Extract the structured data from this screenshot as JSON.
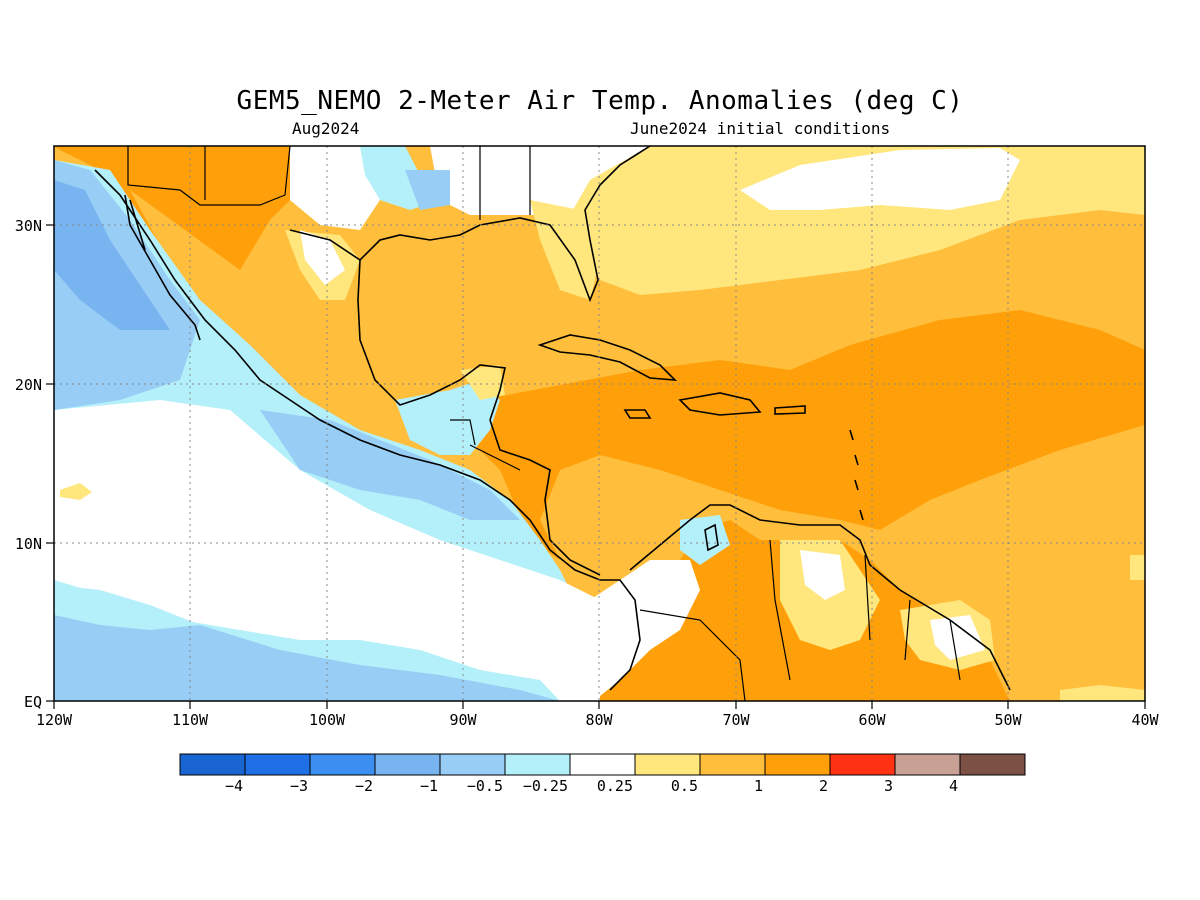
{
  "title": "GEM5_NEMO 2-Meter Air Temp. Anomalies (deg C)",
  "subtitle_left": "Aug2024",
  "subtitle_right": "June2024 initial conditions",
  "lat_labels": [
    "30N",
    "20N",
    "10N",
    "EQ"
  ],
  "lon_labels": [
    "120W",
    "110W",
    "100W",
    "90W",
    "80W",
    "70W",
    "60W",
    "50W",
    "40W"
  ],
  "colorbar": {
    "labels": [
      "-4",
      "-3",
      "-2",
      "-1",
      "-0.5",
      "-0.25",
      "0.25",
      "0.5",
      "1",
      "2",
      "3",
      "4"
    ],
    "colors": [
      "#1966d2",
      "#1f6fe6",
      "#3c8ff0",
      "#78b4f0",
      "#98cdf6",
      "#b4f0fa",
      "#ffffff",
      "#ffe67d",
      "#ffbe3c",
      "#ffa00a",
      "#ff3214",
      "#c8a096",
      "#7d5046"
    ]
  },
  "colors": {
    "ocean_white": "#ffffff",
    "light_orange": "#ffbe3c",
    "orange": "#ffa00a",
    "yellow": "#ffe67d",
    "light_blue": "#b4f0fa",
    "mid_blue": "#98cdf6",
    "blue": "#78b4f0"
  }
}
